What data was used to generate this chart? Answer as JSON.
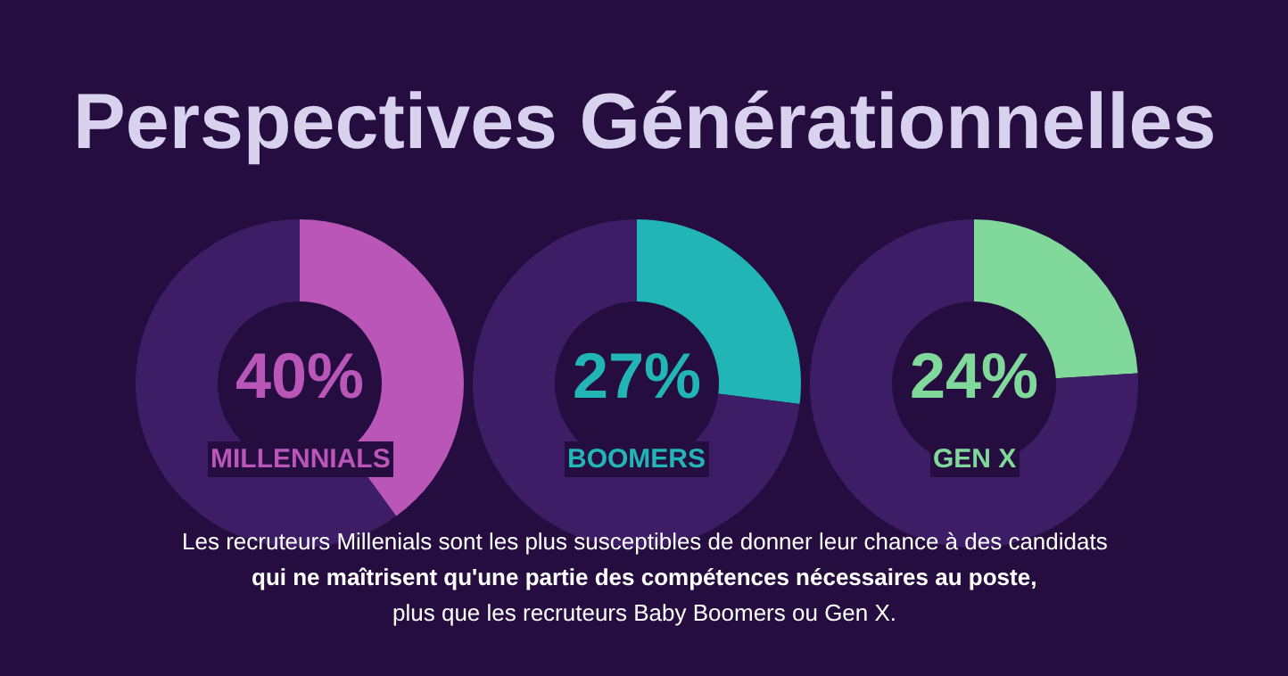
{
  "chart_data": [
    {
      "type": "other",
      "title": "Perspectives Générationnelles",
      "annotations": [
        "Les recruteurs Millenials sont les plus susceptibles de donner leur chance à des candidats",
        "qui ne maîtrisent qu'une partie des compétences nécessaires au poste,",
        "plus que les recruteurs Baby Boomers ou Gen X."
      ]
    },
    {
      "type": "donut",
      "title": "MILLENNIALS",
      "categories": [
        null,
        null
      ],
      "values": [
        40,
        60
      ],
      "colors": [
        "#b956b8",
        "#3d1d66"
      ],
      "annotations": [
        "40%"
      ]
    },
    {
      "type": "donut",
      "title": "BOOMERS",
      "categories": [
        null,
        null
      ],
      "values": [
        27,
        73
      ],
      "colors": [
        "#22b5b5",
        "#3d1d66"
      ],
      "annotations": [
        "27%"
      ]
    },
    {
      "type": "donut",
      "title": "GEN X",
      "categories": [
        null,
        null
      ],
      "values": [
        24,
        76
      ],
      "colors": [
        "#80d99a",
        "#3d1d66"
      ],
      "annotations": [
        "24%"
      ]
    }
  ]
}
